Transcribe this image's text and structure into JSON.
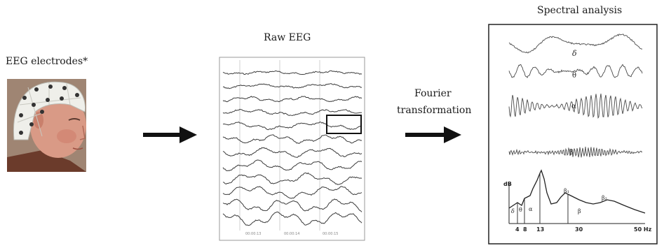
{
  "electrodes": {
    "label": "EEG electrodes*"
  },
  "raw_eeg": {
    "label": "Raw EEG",
    "time_ticks": [
      "00:00:13",
      "00:00:14",
      "00:00:15"
    ]
  },
  "fourier": {
    "line1": "Fourier",
    "line2": "transformation"
  },
  "spectral": {
    "label": "Spectral analysis",
    "band_labels": [
      "δ",
      "θ",
      "α",
      "β"
    ],
    "spectrum": {
      "y_label": "dB",
      "x_ticks": [
        "4",
        "8",
        "13",
        "30",
        "50 Hz"
      ],
      "band_labels": [
        "δ",
        "θ",
        "α",
        "β₁",
        "β",
        "β₂"
      ]
    }
  },
  "colors": {
    "arrow": "#111111",
    "skin": "#d99a86",
    "cap": "#efefea"
  }
}
